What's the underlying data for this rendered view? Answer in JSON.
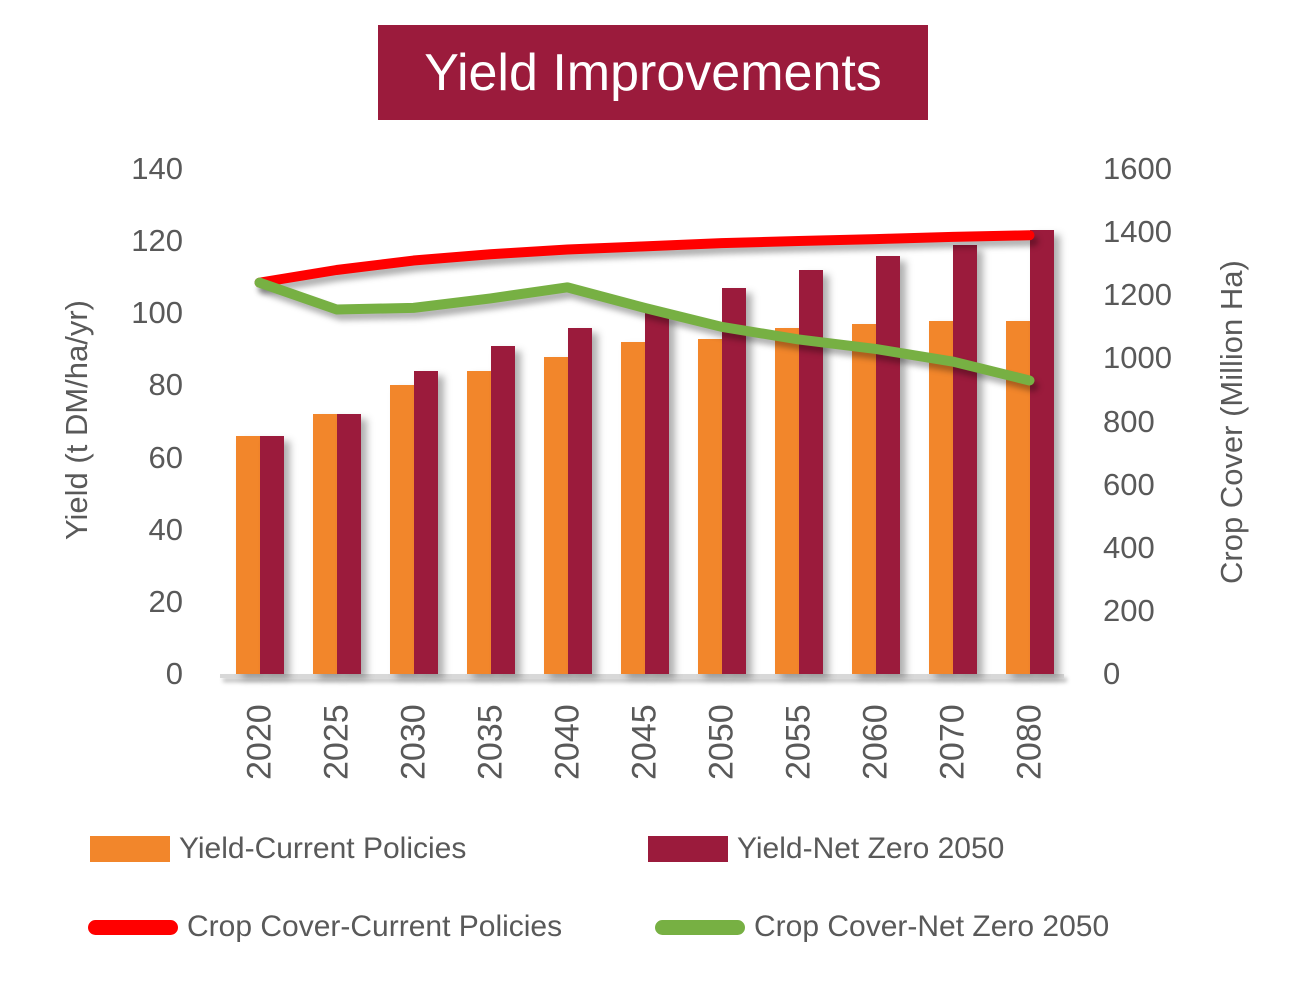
{
  "chart_data": {
    "type": "bar",
    "title": "Yield Improvements",
    "categories": [
      "2020",
      "2025",
      "2030",
      "2035",
      "2040",
      "2045",
      "2050",
      "2055",
      "2060",
      "2070",
      "2080"
    ],
    "series": [
      {
        "name": "Yield-Current Policies",
        "type": "bar",
        "axis": "left",
        "color": "#F2862B",
        "values": [
          66,
          72,
          80,
          84,
          88,
          92,
          93,
          96,
          97,
          98,
          98
        ]
      },
      {
        "name": "Yield-Net Zero 2050",
        "type": "bar",
        "axis": "left",
        "color": "#9B1B3C",
        "values": [
          66,
          72,
          84,
          91,
          96,
          100,
          107,
          112,
          116,
          119,
          123
        ]
      },
      {
        "name": "Crop Cover-Current Policies",
        "type": "line",
        "axis": "right",
        "color": "#FF0000",
        "values": [
          1240,
          1280,
          1310,
          1330,
          1345,
          1355,
          1365,
          1372,
          1378,
          1385,
          1390
        ]
      },
      {
        "name": "Crop Cover-Net Zero 2050",
        "type": "line",
        "axis": "right",
        "color": "#77B043",
        "values": [
          1240,
          1155,
          1160,
          1190,
          1225,
          1160,
          1100,
          1060,
          1030,
          990,
          930
        ]
      }
    ],
    "left_axis": {
      "label": "Yield (t DM/ha/yr)",
      "min": 0,
      "max": 140,
      "step": 20,
      "ticks": [
        0,
        20,
        40,
        60,
        80,
        100,
        120,
        140
      ]
    },
    "right_axis": {
      "label": "Crop Cover (Million Ha)",
      "min": 0,
      "max": 1600,
      "step": 200,
      "ticks": [
        0,
        200,
        400,
        600,
        800,
        1000,
        1200,
        1400,
        1600
      ]
    },
    "legend_position": "bottom",
    "grid": false
  },
  "colors": {
    "title_bg": "#9B1B3C",
    "title_text": "#FFFFFF",
    "axis_text": "#595959",
    "baseline": "#D8D8D8"
  }
}
